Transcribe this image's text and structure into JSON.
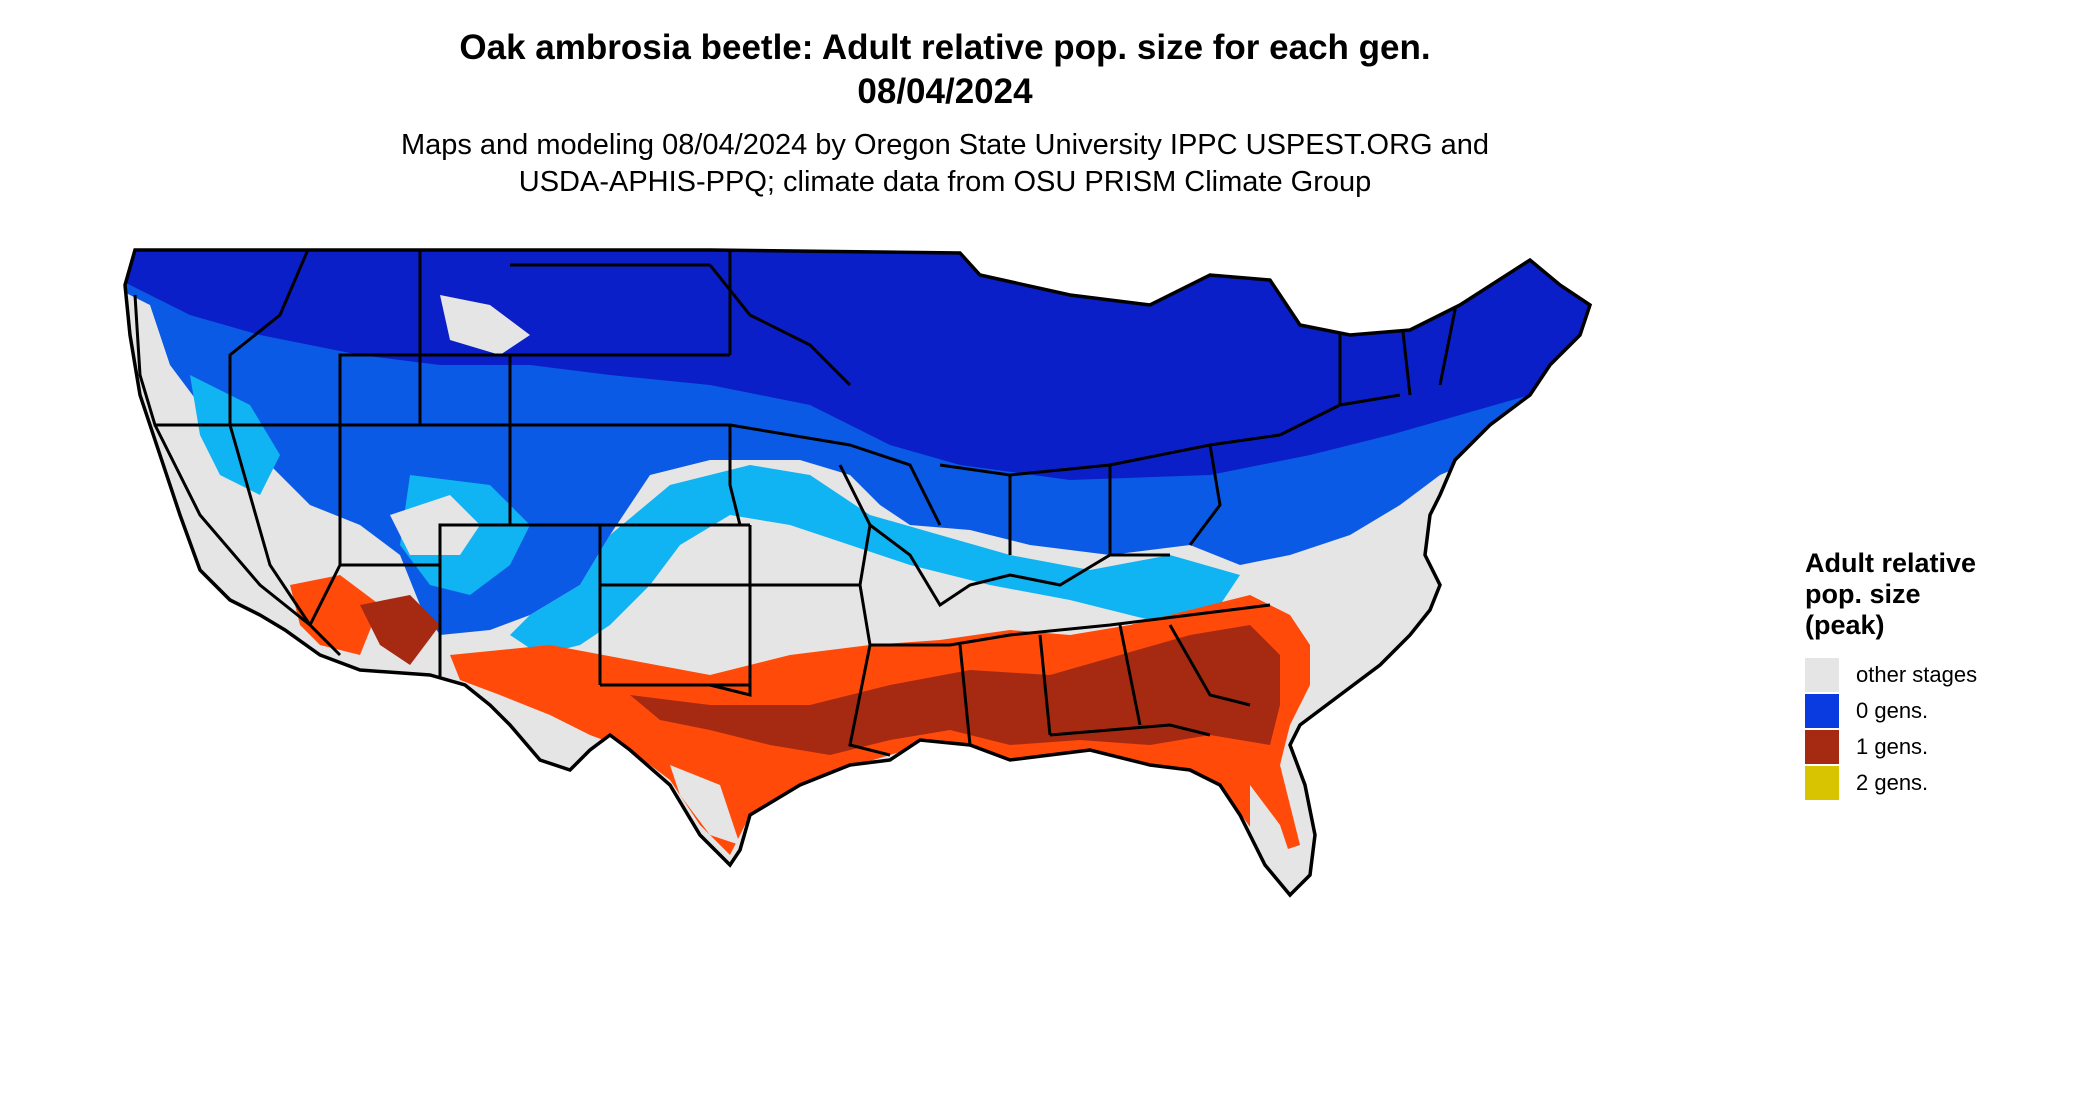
{
  "title": {
    "line1": "Oak ambrosia beetle: Adult relative pop. size for each gen.",
    "line2": "08/04/2024"
  },
  "subtitle": {
    "line1": "Maps and modeling 08/04/2024 by Oregon State University IPPC USPEST.ORG and",
    "line2": "USDA-APHIS-PPQ; climate data from OSU PRISM Climate Group"
  },
  "legend": {
    "title_lines": [
      "Adult relative",
      "pop. size",
      "(peak)"
    ],
    "items": [
      {
        "label": "other stages",
        "color": "#e5e5e5"
      },
      {
        "label": "0 gens.",
        "color": "#0a3be0"
      },
      {
        "label": "1 gens.",
        "color": "#a62a12"
      },
      {
        "label": "2 gens.",
        "color": "#d8c400"
      }
    ]
  },
  "map": {
    "region": "contiguous-united-states",
    "colors": {
      "background": "#e5e5e5",
      "zero_gens_dark": "#0a1fc8",
      "zero_gens_mid": "#0a5ae6",
      "zero_gens_light": "#10b4f2",
      "one_gens_bright": "#ff4a0a",
      "one_gens_dark": "#a62a12",
      "state_border": "#000000"
    }
  }
}
